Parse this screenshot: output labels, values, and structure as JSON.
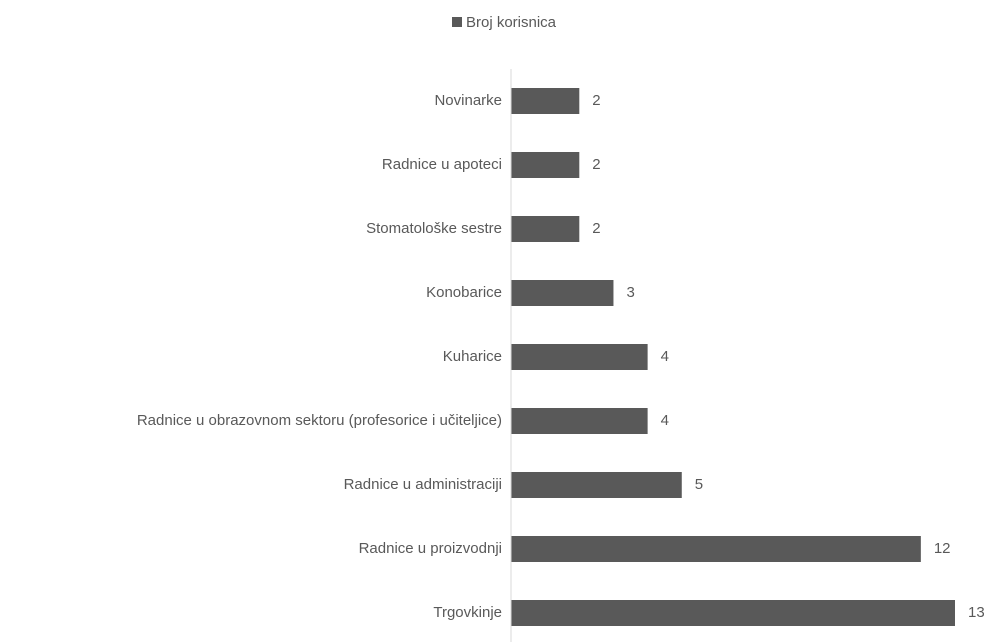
{
  "chart_data": {
    "type": "bar",
    "orientation": "horizontal",
    "categories": [
      "Novinarke",
      "Radnice u apoteci",
      "Stomatološke sestre",
      "Konobarice",
      "Kuharice",
      "Radnice u obrazovnom sektoru (profesorice i učiteljice)",
      "Radnice u administraciji",
      "Radnice u proizvodnji",
      "Trgovkinje"
    ],
    "series": [
      {
        "name": "Broj korisnica",
        "color": "#595959",
        "values": [
          2,
          2,
          2,
          3,
          4,
          4,
          5,
          12,
          13
        ]
      }
    ],
    "legend": "top"
  }
}
